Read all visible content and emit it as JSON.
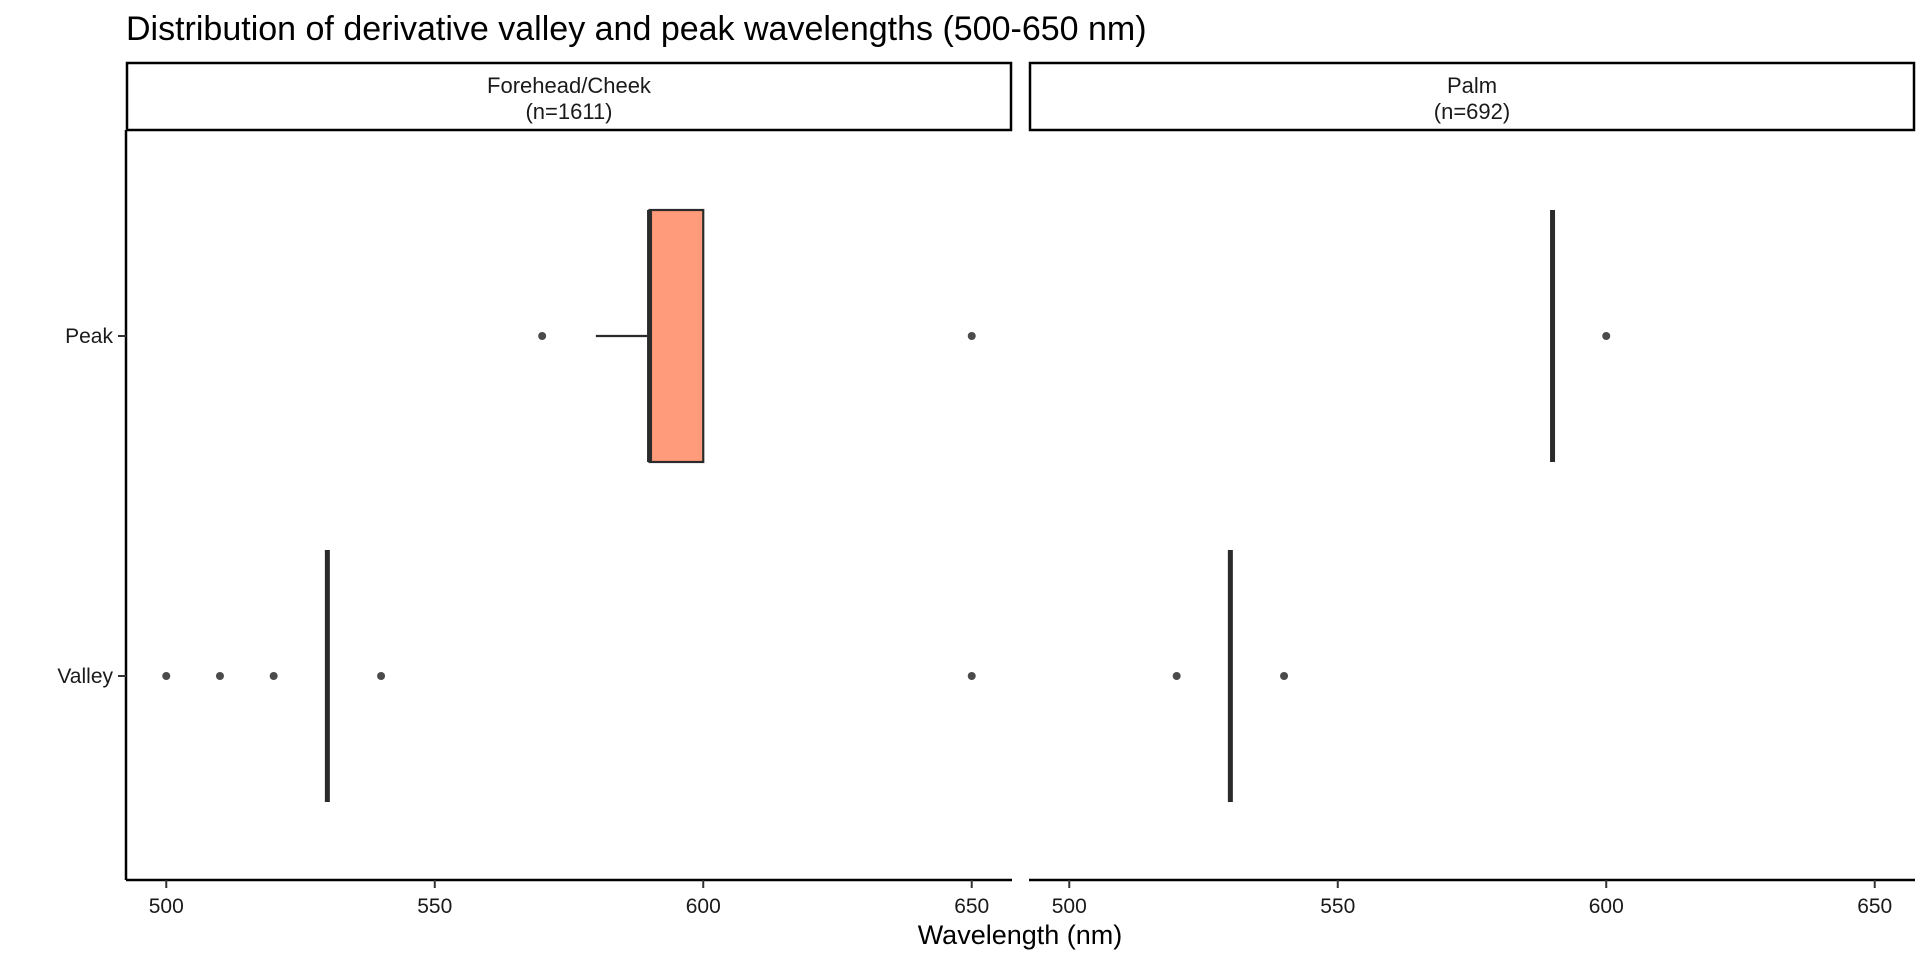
{
  "chart_data": {
    "type": "boxplot",
    "title": "Distribution of derivative valley and peak wavelengths (500-650 nm)",
    "xlabel": "Wavelength (nm)",
    "ylabel": "",
    "xlim": [
      492.5,
      657.5
    ],
    "xticks": [
      500,
      550,
      600,
      650
    ],
    "categories": [
      "Peak",
      "Valley"
    ],
    "fill_color": "#FF9A7B",
    "line_color": "#2b2b2b",
    "panels": [
      {
        "strip_label_line1": "Forehead/Cheek",
        "strip_label_line2": "(n=1611)",
        "boxes": [
          {
            "category": "Peak",
            "q1": 590,
            "median": 590,
            "q3": 600,
            "whisker_low": 580,
            "whisker_high": 600,
            "outliers": [
              570,
              650
            ]
          },
          {
            "category": "Valley",
            "q1": 530,
            "median": 530,
            "q3": 530,
            "whisker_low": 530,
            "whisker_high": 530,
            "outliers": [
              500,
              510,
              520,
              540,
              650
            ]
          }
        ]
      },
      {
        "strip_label_line1": "Palm",
        "strip_label_line2": "(n=692)",
        "boxes": [
          {
            "category": "Peak",
            "q1": 590,
            "median": 590,
            "q3": 590,
            "whisker_low": 590,
            "whisker_high": 590,
            "outliers": [
              600
            ]
          },
          {
            "category": "Valley",
            "q1": 530,
            "median": 530,
            "q3": 530,
            "whisker_low": 530,
            "whisker_high": 530,
            "outliers": [
              520,
              540
            ]
          }
        ]
      }
    ]
  }
}
